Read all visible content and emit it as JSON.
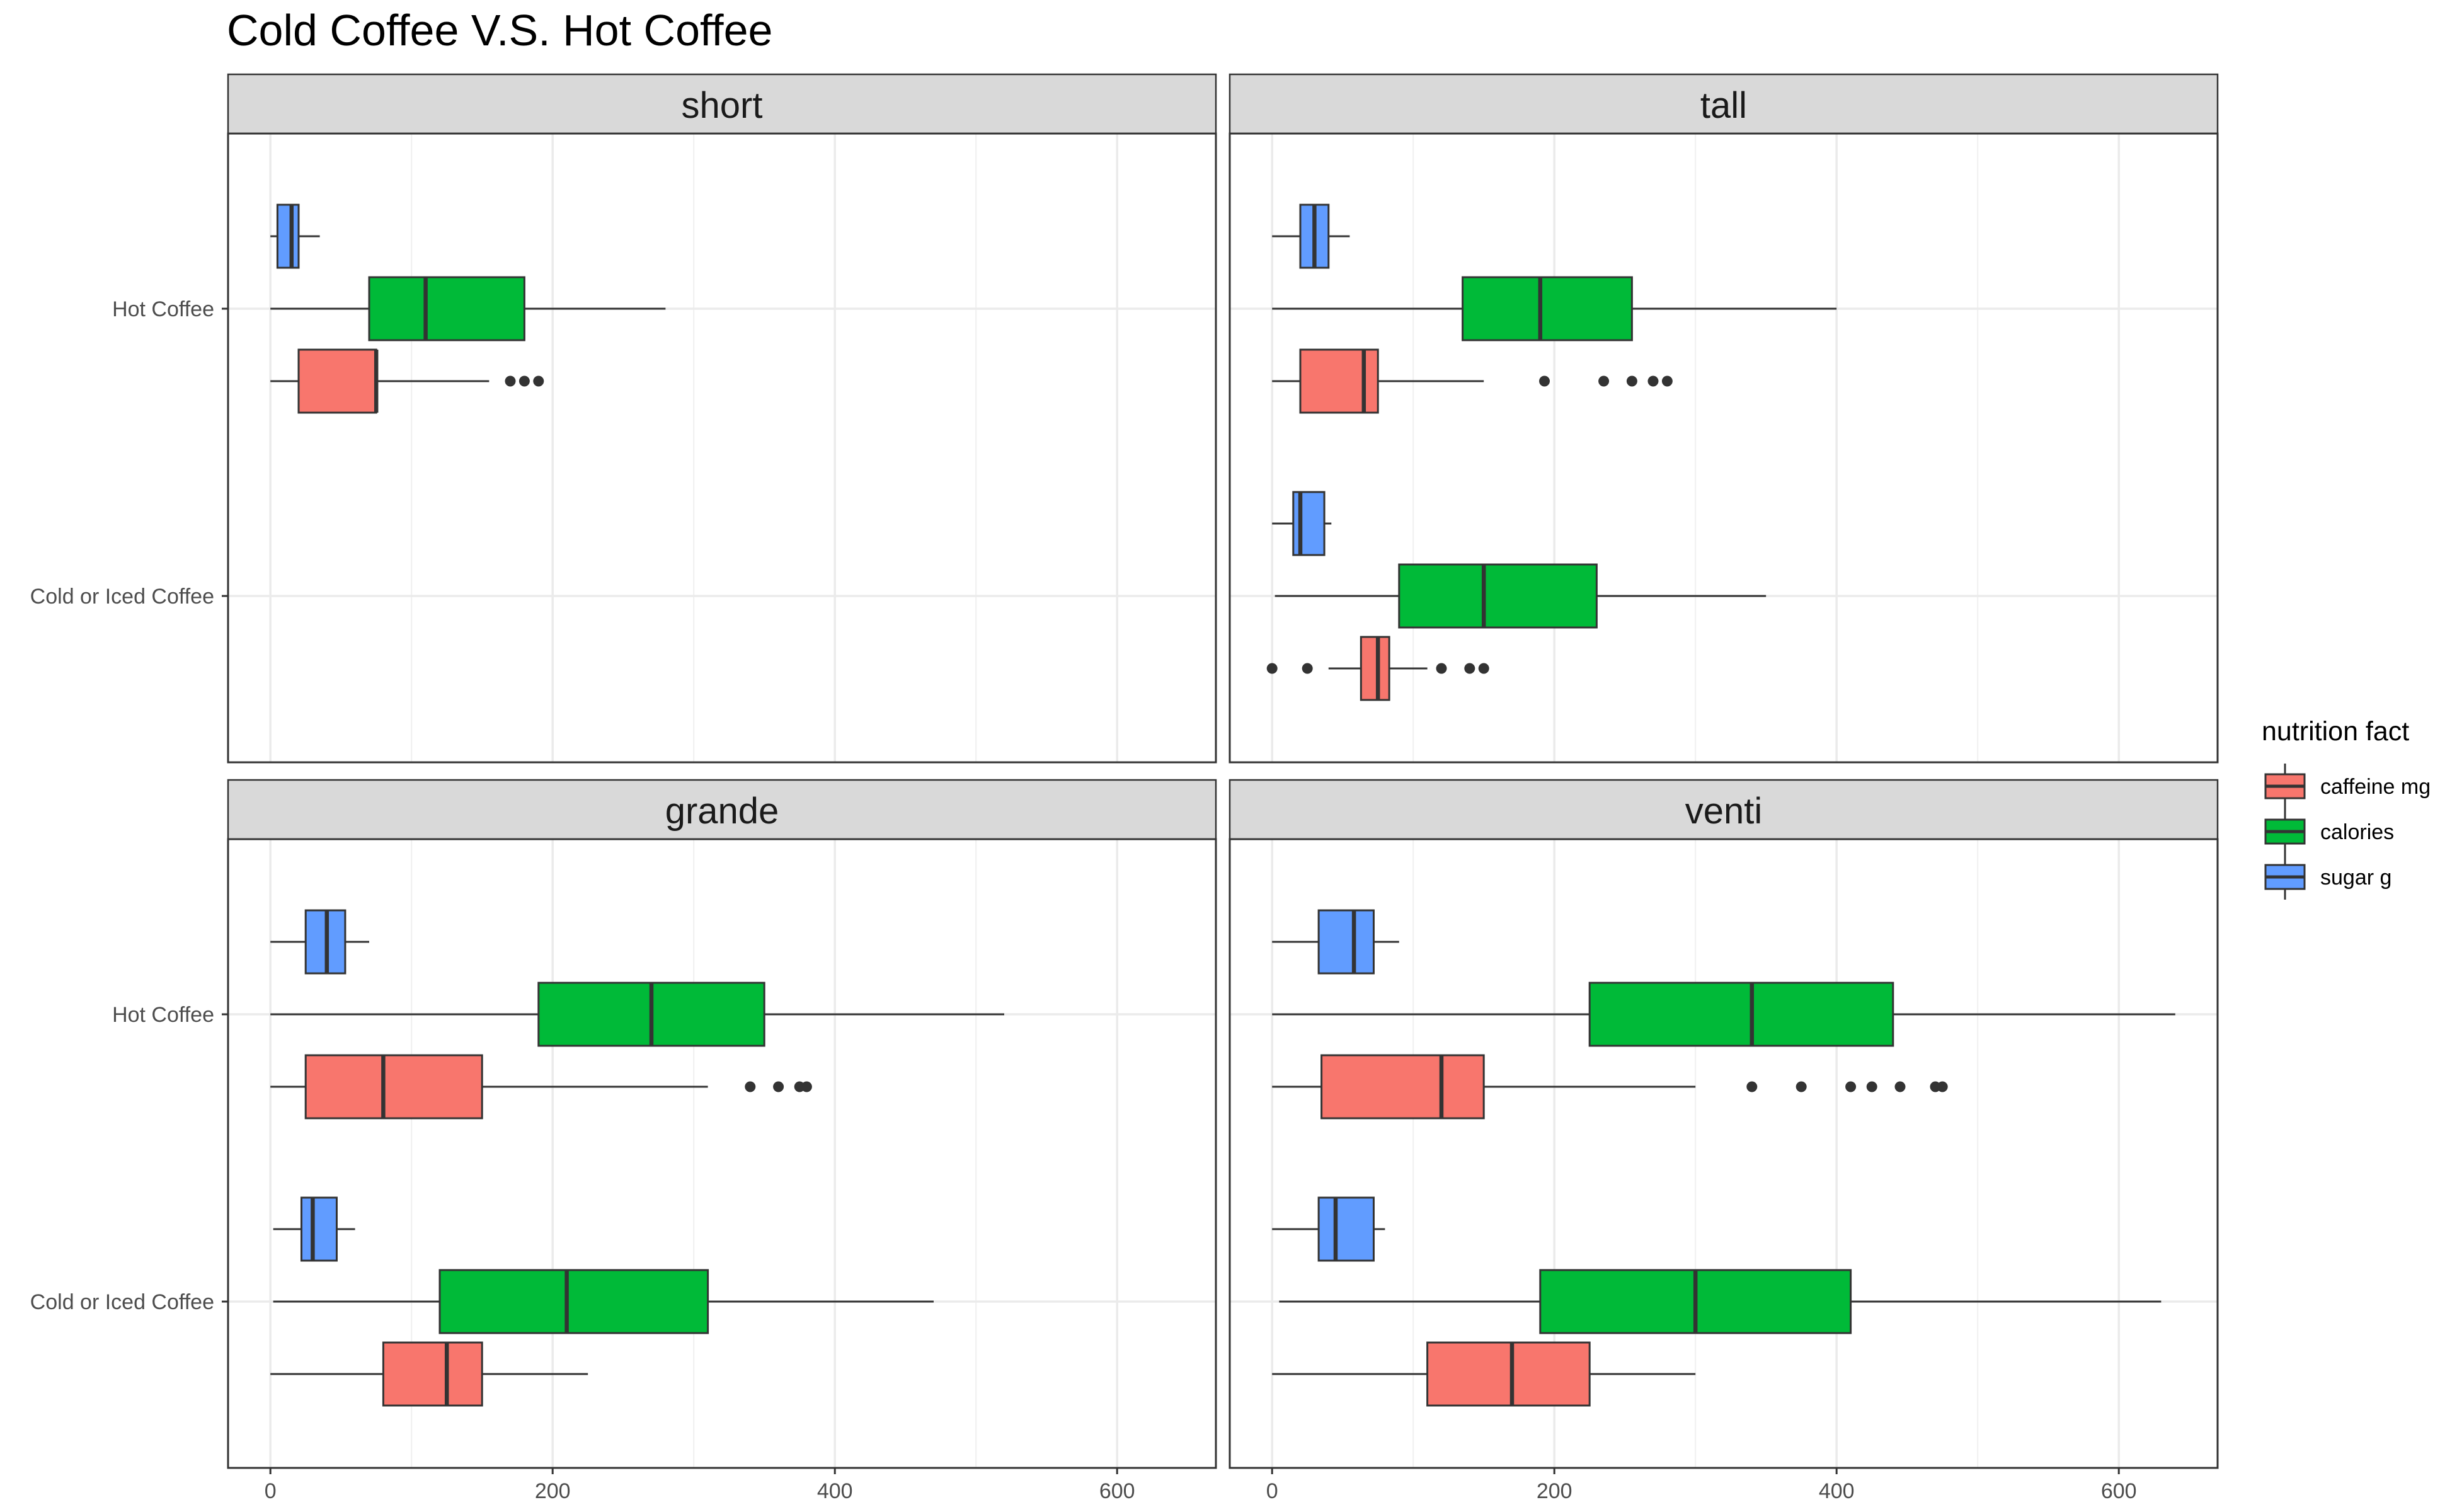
{
  "chart_data": {
    "type": "boxplot",
    "orientation": "horizontal",
    "title": "Cold Coffee V.S. Hot Coffee",
    "xlabel": "",
    "ylabel": "",
    "xlim": [
      -30,
      670
    ],
    "x_ticks": [
      0,
      200,
      400,
      600
    ],
    "categories": [
      "Hot Coffee",
      "Cold or Iced Coffee"
    ],
    "grid": true,
    "legend": {
      "title": "nutrition fact",
      "placement": "right",
      "entries": [
        {
          "name": "caffeine mg",
          "color": "#F8766D"
        },
        {
          "name": "calories",
          "color": "#00BA38"
        },
        {
          "name": "sugar g",
          "color": "#619CFF"
        }
      ]
    },
    "panels": [
      {
        "name": "short",
        "groups": [
          {
            "category": "Hot Coffee",
            "boxes": [
              {
                "metric": "sugar g",
                "whisker_low": 0,
                "q1": 5,
                "median": 15,
                "q3": 20,
                "whisker_high": 35,
                "outliers": []
              },
              {
                "metric": "calories",
                "whisker_low": 0,
                "q1": 70,
                "median": 110,
                "q3": 180,
                "whisker_high": 280,
                "outliers": []
              },
              {
                "metric": "caffeine mg",
                "whisker_low": 0,
                "q1": 20,
                "median": 75,
                "q3": 75,
                "whisker_high": 155,
                "outliers": [
                  170,
                  180,
                  190
                ]
              }
            ]
          }
        ]
      },
      {
        "name": "tall",
        "groups": [
          {
            "category": "Hot Coffee",
            "boxes": [
              {
                "metric": "sugar g",
                "whisker_low": 0,
                "q1": 20,
                "median": 30,
                "q3": 40,
                "whisker_high": 55,
                "outliers": []
              },
              {
                "metric": "calories",
                "whisker_low": 0,
                "q1": 135,
                "median": 190,
                "q3": 255,
                "whisker_high": 400,
                "outliers": []
              },
              {
                "metric": "caffeine mg",
                "whisker_low": 0,
                "q1": 20,
                "median": 65,
                "q3": 75,
                "whisker_high": 150,
                "outliers": [
                  193,
                  235,
                  255,
                  270,
                  280
                ]
              }
            ]
          },
          {
            "category": "Cold or Iced Coffee",
            "boxes": [
              {
                "metric": "sugar g",
                "whisker_low": 0,
                "q1": 15,
                "median": 20,
                "q3": 37,
                "whisker_high": 42,
                "outliers": []
              },
              {
                "metric": "calories",
                "whisker_low": 2,
                "q1": 90,
                "median": 150,
                "q3": 230,
                "whisker_high": 350,
                "outliers": []
              },
              {
                "metric": "caffeine mg",
                "whisker_low": 40,
                "q1": 63,
                "median": 75,
                "q3": 83,
                "whisker_high": 110,
                "outliers": [
                  0,
                  25,
                  120,
                  140,
                  150
                ]
              }
            ]
          }
        ]
      },
      {
        "name": "grande",
        "groups": [
          {
            "category": "Hot Coffee",
            "boxes": [
              {
                "metric": "sugar g",
                "whisker_low": 0,
                "q1": 25,
                "median": 40,
                "q3": 53,
                "whisker_high": 70,
                "outliers": []
              },
              {
                "metric": "calories",
                "whisker_low": 0,
                "q1": 190,
                "median": 270,
                "q3": 350,
                "whisker_high": 520,
                "outliers": []
              },
              {
                "metric": "caffeine mg",
                "whisker_low": 0,
                "q1": 25,
                "median": 80,
                "q3": 150,
                "whisker_high": 310,
                "outliers": [
                  340,
                  360,
                  375,
                  380
                ]
              }
            ]
          },
          {
            "category": "Cold or Iced Coffee",
            "boxes": [
              {
                "metric": "sugar g",
                "whisker_low": 2,
                "q1": 22,
                "median": 30,
                "q3": 47,
                "whisker_high": 60,
                "outliers": []
              },
              {
                "metric": "calories",
                "whisker_low": 2,
                "q1": 120,
                "median": 210,
                "q3": 310,
                "whisker_high": 470,
                "outliers": []
              },
              {
                "metric": "caffeine mg",
                "whisker_low": 0,
                "q1": 80,
                "median": 125,
                "q3": 150,
                "whisker_high": 225,
                "outliers": []
              }
            ]
          }
        ]
      },
      {
        "name": "venti",
        "groups": [
          {
            "category": "Hot Coffee",
            "boxes": [
              {
                "metric": "sugar g",
                "whisker_low": 0,
                "q1": 33,
                "median": 58,
                "q3": 72,
                "whisker_high": 90,
                "outliers": []
              },
              {
                "metric": "calories",
                "whisker_low": 0,
                "q1": 225,
                "median": 340,
                "q3": 440,
                "whisker_high": 640,
                "outliers": []
              },
              {
                "metric": "caffeine mg",
                "whisker_low": 0,
                "q1": 35,
                "median": 120,
                "q3": 150,
                "whisker_high": 300,
                "outliers": [
                  340,
                  375,
                  410,
                  425,
                  445,
                  470,
                  475
                ]
              }
            ]
          },
          {
            "category": "Cold or Iced Coffee",
            "boxes": [
              {
                "metric": "sugar g",
                "whisker_low": 0,
                "q1": 33,
                "median": 45,
                "q3": 72,
                "whisker_high": 80,
                "outliers": []
              },
              {
                "metric": "calories",
                "whisker_low": 5,
                "q1": 190,
                "median": 300,
                "q3": 410,
                "whisker_high": 630,
                "outliers": []
              },
              {
                "metric": "caffeine mg",
                "whisker_low": 0,
                "q1": 110,
                "median": 170,
                "q3": 225,
                "whisker_high": 300,
                "outliers": []
              }
            ]
          }
        ]
      }
    ]
  }
}
